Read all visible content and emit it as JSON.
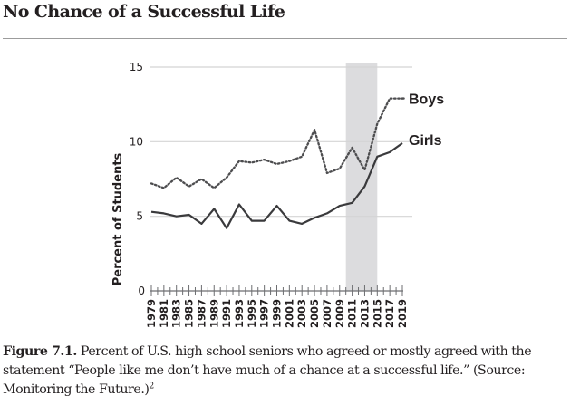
{
  "header": {
    "title": "No Chance of a Successful Life"
  },
  "caption": {
    "label": "Figure 7.1.",
    "text": " Percent of U.S. high school seniors who agreed or mostly agreed with the statement “People like me don’t have much of a chance at a successful life.” (Source: Monitoring the Future.)",
    "footnote": "2"
  },
  "chart_data": {
    "type": "line",
    "title": "",
    "xlabel": "",
    "ylabel": "Percent of Students",
    "ylim": [
      0,
      15
    ],
    "xlim": [
      1979,
      2019
    ],
    "yticks": [
      0,
      5,
      10,
      15
    ],
    "ytick_labels": [
      "0",
      "5",
      "10",
      "15"
    ],
    "xtick_labels": [
      "1979",
      "1981",
      "1983",
      "1985",
      "1987",
      "1989",
      "1991",
      "1993",
      "1995",
      "1997",
      "1999",
      "2001",
      "2003",
      "2005",
      "2007",
      "2009",
      "2011",
      "2013",
      "2015",
      "2017",
      "2019"
    ],
    "grid": "horizontal",
    "shaded_region": {
      "from": 2010,
      "to": 2015,
      "color": "#dcdcde"
    },
    "x": [
      1979,
      1981,
      1983,
      1985,
      1987,
      1989,
      1991,
      1993,
      1995,
      1997,
      1999,
      2001,
      2003,
      2005,
      2007,
      2009,
      2011,
      2013,
      2015,
      2017,
      2019
    ],
    "series": [
      {
        "name": "Boys",
        "style": "dotted",
        "color": "#4d4d4f",
        "values": [
          7.2,
          6.9,
          7.6,
          7.0,
          7.5,
          6.9,
          7.6,
          8.7,
          8.6,
          8.8,
          8.5,
          8.7,
          9.0,
          10.8,
          7.9,
          8.2,
          9.6,
          8.1,
          11.2,
          12.9,
          12.9
        ]
      },
      {
        "name": "Girls",
        "style": "solid",
        "color": "#3a3a3c",
        "values": [
          5.3,
          5.2,
          5.0,
          5.1,
          4.5,
          5.5,
          4.2,
          5.8,
          4.7,
          4.7,
          5.7,
          4.7,
          4.5,
          4.9,
          5.2,
          5.7,
          5.9,
          7.0,
          9.0,
          9.3,
          9.9
        ]
      }
    ]
  }
}
